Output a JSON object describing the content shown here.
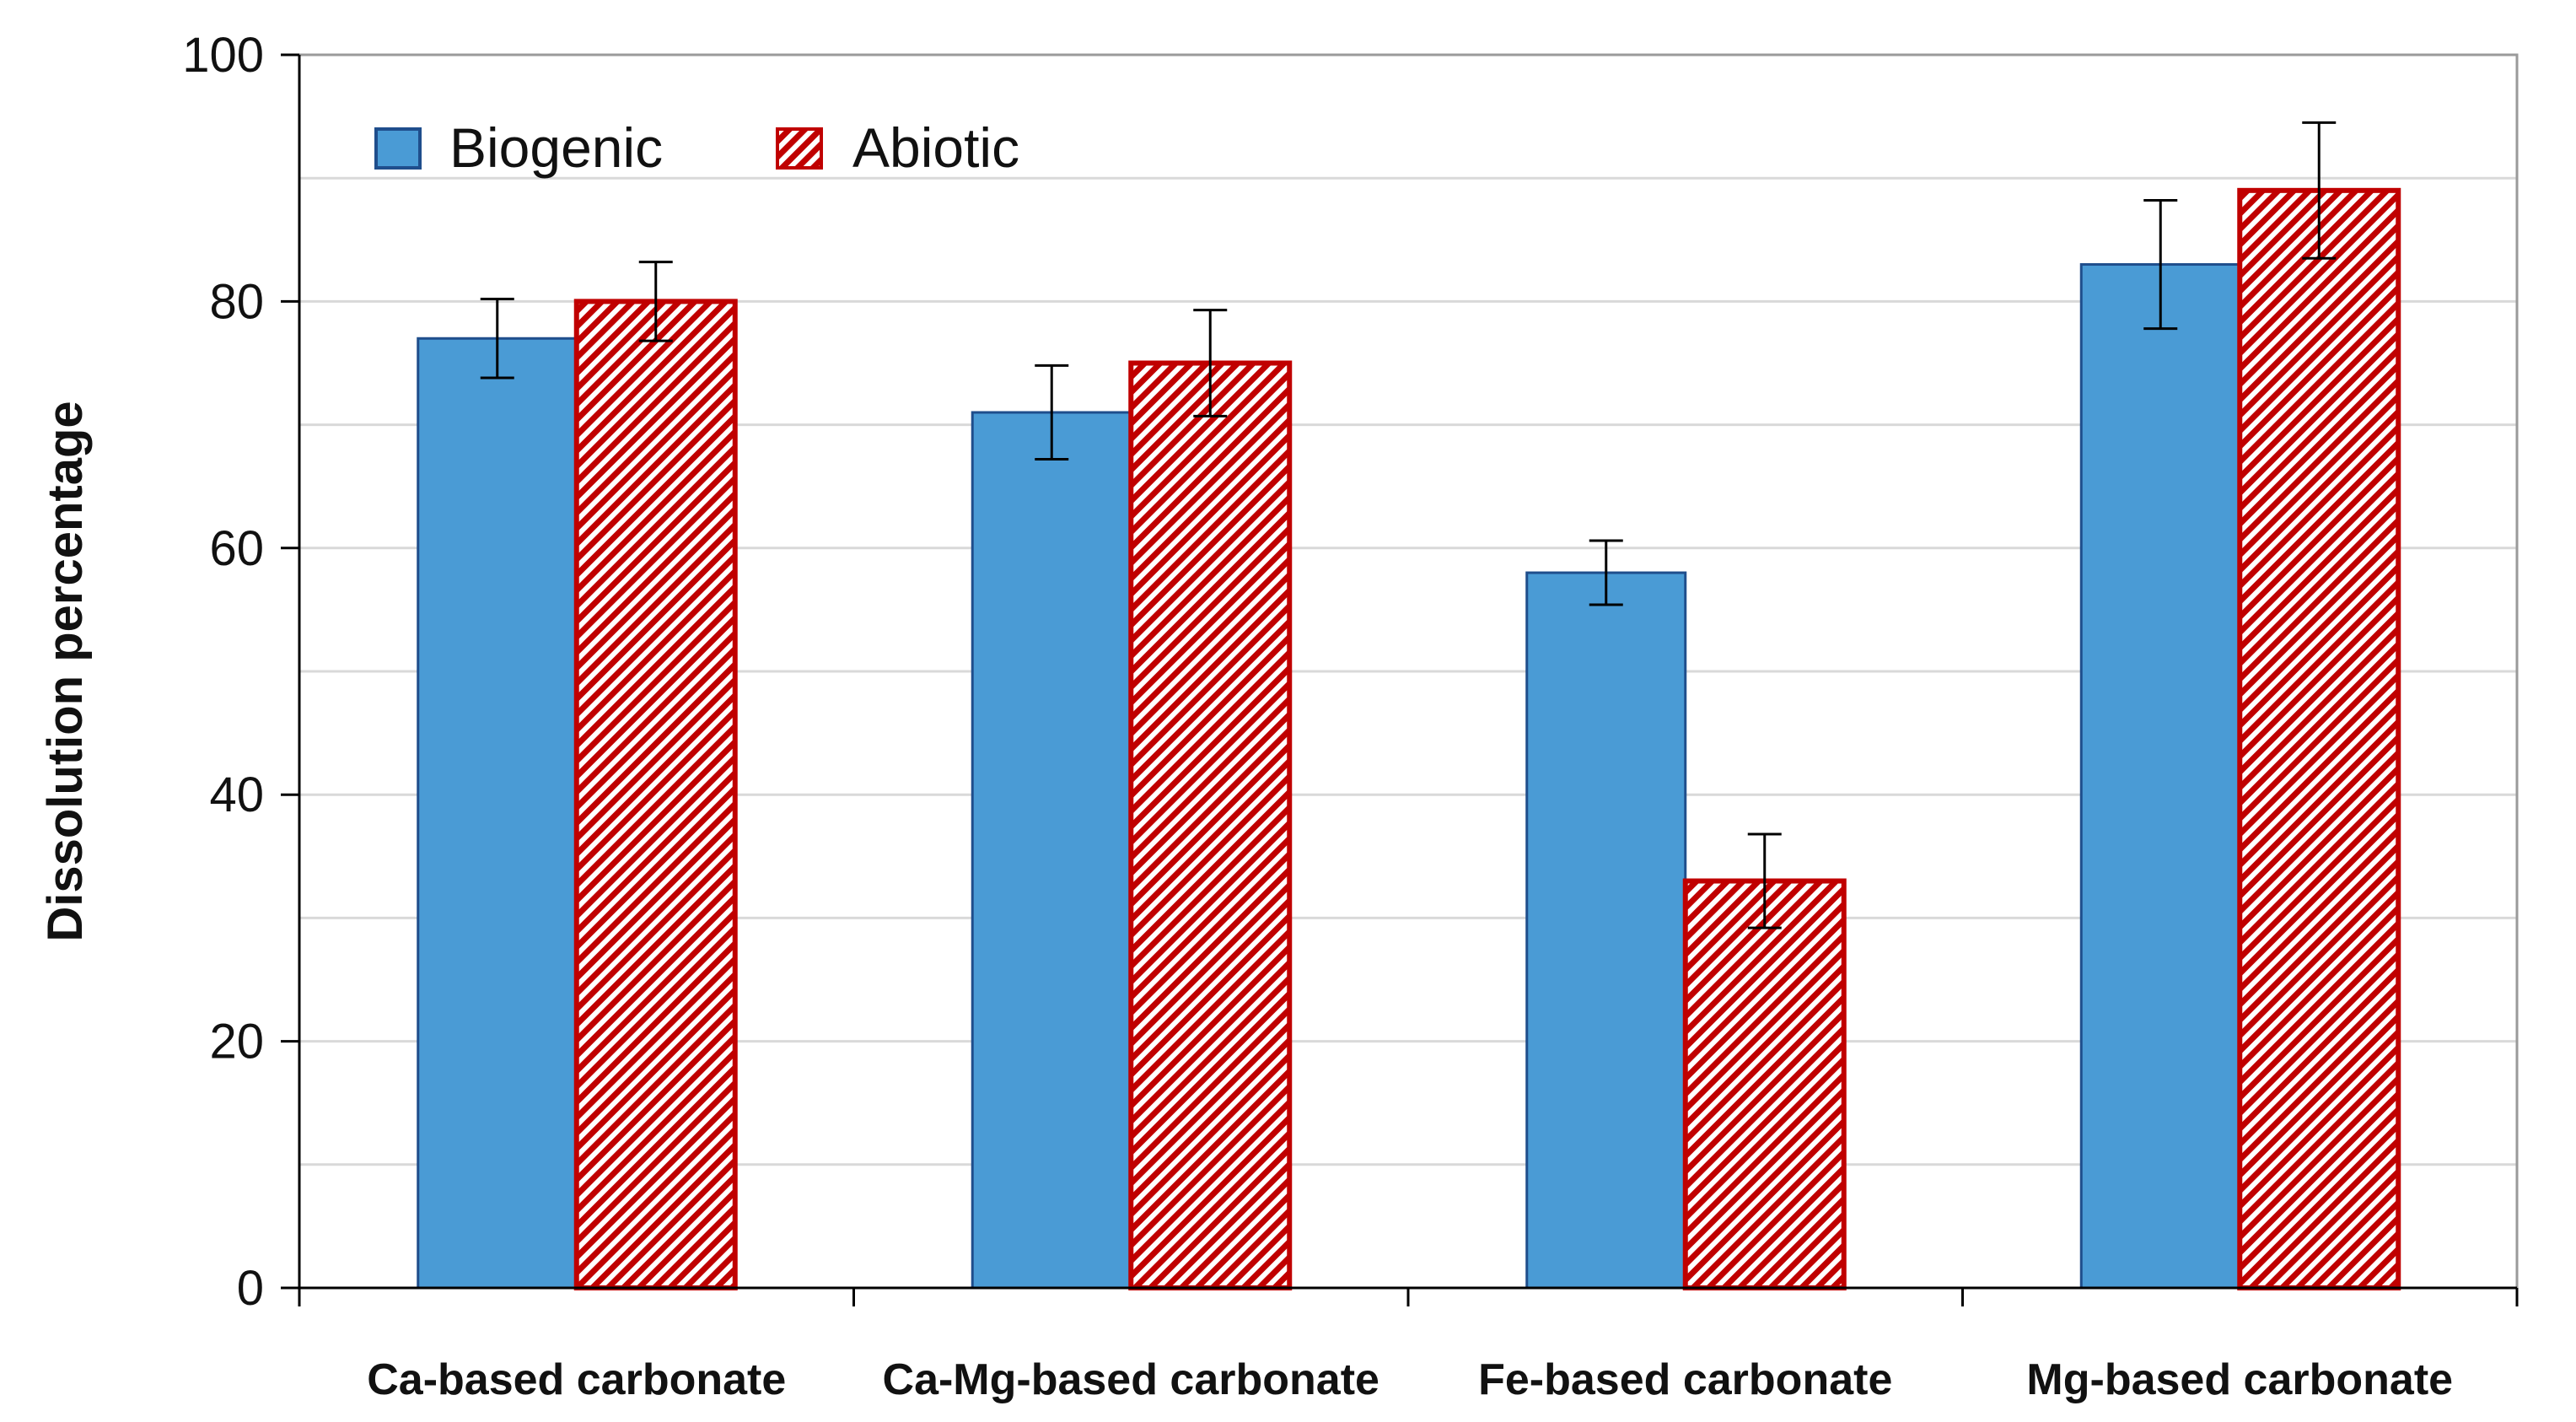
{
  "chart_data": {
    "type": "bar",
    "title": "",
    "xlabel": "",
    "ylabel": "Dissolution percentage",
    "ylim": [
      0,
      100
    ],
    "yticks": [
      0,
      20,
      40,
      60,
      80,
      100
    ],
    "ytick_labels": [
      "0",
      "20",
      "40",
      "60",
      "80",
      "100"
    ],
    "grid": true,
    "legend_position": "top-left",
    "categories": [
      "Ca-based carbonate",
      "Ca-Mg-based carbonate",
      "Fe-based carbonate",
      "Mg-based carbonate"
    ],
    "series": [
      {
        "name": "Biogenic",
        "color": "#4a9bd5",
        "edge_color": "#1f4e8c",
        "pattern": "solid",
        "values": [
          77,
          71,
          58,
          83
        ],
        "errors": [
          3.2,
          3.8,
          2.6,
          5.2
        ]
      },
      {
        "name": "Abiotic",
        "color": "#c00000",
        "edge_color": "#c00000",
        "pattern": "diagonal-hatch",
        "values": [
          80,
          75,
          33,
          89
        ],
        "errors": [
          3.2,
          4.3,
          3.8,
          5.5
        ]
      }
    ]
  }
}
